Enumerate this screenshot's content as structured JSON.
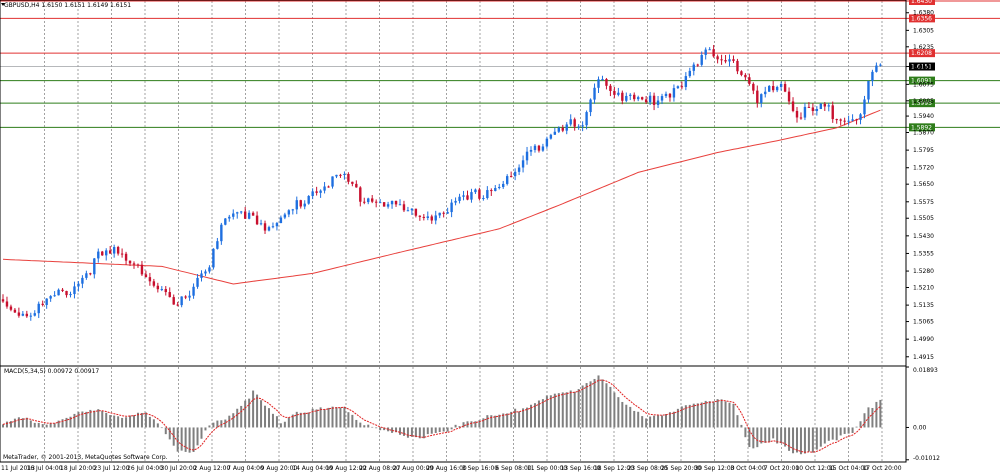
{
  "header": {
    "main_title": "GBPUSD,H4 1.6150 1.6151 1.6149 1.6151",
    "indicator_title": "MACD(5,34,5) 0.00972 0.00917",
    "copyright": "MetaTrader, © 2001-2013, MetaQuotes Software Corp."
  },
  "colors": {
    "bull_candle": "#1e6fe0",
    "bear_candle": "#c8102e",
    "moving_average": "#e8403c",
    "resistance": "#e03030",
    "support": "#2e7d1a",
    "macd_histogram": "#7f7f7f",
    "macd_signal": "#e02020",
    "grid": "#8c8c8c"
  },
  "chart_data": [
    {
      "type": "candlestick",
      "symbol": "GBPUSD",
      "timeframe": "H4",
      "ylim": [
        1.488,
        1.643
      ],
      "y_ticks": [
        "1.6380",
        "1.6305",
        "1.6235",
        "1.6151",
        "1.6075",
        "1.6005",
        "1.5940",
        "1.5870",
        "1.5795",
        "1.5720",
        "1.5650",
        "1.5575",
        "1.5505",
        "1.5430",
        "1.5355",
        "1.5280",
        "1.5210",
        "1.5135",
        "1.5065",
        "1.4990",
        "1.4915"
      ],
      "x_ticks": [
        "11 Jul 2013",
        "16 Jul 04:00",
        "18 Jul 20:00",
        "23 Jul 12:00",
        "26 Jul 04:00",
        "30 Jul 20:00",
        "2 Aug 12:00",
        "7 Aug 04:00",
        "9 Aug 20:00",
        "14 Aug 04:00",
        "19 Aug 12:00",
        "22 Aug 08:00",
        "27 Aug 00:00",
        "29 Aug 16:00",
        "3 Sep 16:00",
        "6 Sep 08:00",
        "11 Sep 00:00",
        "13 Sep 16:00",
        "18 Sep 12:00",
        "23 Sep 08:00",
        "25 Sep 20:00",
        "30 Sep 12:00",
        "3 Oct 04:00",
        "7 Oct 20:00",
        "10 Oct 12:00",
        "15 Oct 04:00",
        "17 Oct 20:00"
      ],
      "close_anchors": [
        {
          "x": 0,
          "close": 1.516
        },
        {
          "x": 6,
          "close": 1.511
        },
        {
          "x": 18,
          "close": 1.523
        },
        {
          "x": 24,
          "close": 1.535
        },
        {
          "x": 28,
          "close": 1.537
        },
        {
          "x": 34,
          "close": 1.5335
        },
        {
          "x": 38,
          "close": 1.5225
        },
        {
          "x": 44,
          "close": 1.5135
        },
        {
          "x": 48,
          "close": 1.5245
        },
        {
          "x": 52,
          "close": 1.533
        },
        {
          "x": 56,
          "close": 1.551
        },
        {
          "x": 62,
          "close": 1.5545
        },
        {
          "x": 68,
          "close": 1.547
        },
        {
          "x": 74,
          "close": 1.5575
        },
        {
          "x": 80,
          "close": 1.5665
        },
        {
          "x": 86,
          "close": 1.569
        },
        {
          "x": 90,
          "close": 1.5615
        },
        {
          "x": 98,
          "close": 1.558
        },
        {
          "x": 104,
          "close": 1.5525
        },
        {
          "x": 110,
          "close": 1.5545
        },
        {
          "x": 116,
          "close": 1.559
        },
        {
          "x": 122,
          "close": 1.564
        },
        {
          "x": 128,
          "close": 1.569
        },
        {
          "x": 134,
          "close": 1.582
        },
        {
          "x": 140,
          "close": 1.5925
        },
        {
          "x": 146,
          "close": 1.59
        },
        {
          "x": 150,
          "close": 1.613
        },
        {
          "x": 156,
          "close": 1.604
        },
        {
          "x": 162,
          "close": 1.601
        },
        {
          "x": 168,
          "close": 1.606
        },
        {
          "x": 174,
          "close": 1.615
        },
        {
          "x": 178,
          "close": 1.623
        },
        {
          "x": 184,
          "close": 1.62
        },
        {
          "x": 190,
          "close": 1.601
        },
        {
          "x": 196,
          "close": 1.61
        },
        {
          "x": 200,
          "close": 1.596
        },
        {
          "x": 206,
          "close": 1.598
        },
        {
          "x": 212,
          "close": 1.596
        },
        {
          "x": 216,
          "close": 1.595
        },
        {
          "x": 219,
          "close": 1.614
        },
        {
          "x": 221,
          "close": 1.6151
        }
      ],
      "moving_average": [
        {
          "x": 0,
          "value": 1.533
        },
        {
          "x": 40,
          "value": 1.53
        },
        {
          "x": 58,
          "value": 1.5225
        },
        {
          "x": 78,
          "value": 1.527
        },
        {
          "x": 100,
          "value": 1.536
        },
        {
          "x": 125,
          "value": 1.546
        },
        {
          "x": 140,
          "value": 1.556
        },
        {
          "x": 160,
          "value": 1.57
        },
        {
          "x": 180,
          "value": 1.5785
        },
        {
          "x": 195,
          "value": 1.5835
        },
        {
          "x": 210,
          "value": 1.589
        },
        {
          "x": 221,
          "value": 1.5965
        }
      ],
      "horizontal_lines": [
        {
          "price": 1.643,
          "label": "1.6430",
          "kind": "resistance"
        },
        {
          "price": 1.6356,
          "label": "1.6356",
          "kind": "resistance"
        },
        {
          "price": 1.6208,
          "label": "1.6208",
          "kind": "resistance"
        },
        {
          "price": 1.6091,
          "label": "1.6091",
          "kind": "support"
        },
        {
          "price": 1.5995,
          "label": "1.5995",
          "kind": "support"
        },
        {
          "price": 1.5892,
          "label": "1.5892",
          "kind": "support"
        }
      ],
      "current_price": "1.6151"
    },
    {
      "type": "histogram",
      "name": "MACD(5,34,5)",
      "ylim": [
        -0.0105,
        0.01893
      ],
      "y_ticks": [
        "0.01893",
        "0.00",
        "-0.01012"
      ],
      "macd_anchors": [
        {
          "x": 0,
          "value": 0.002
        },
        {
          "x": 4,
          "value": 0.0035
        },
        {
          "x": 10,
          "value": 0.001
        },
        {
          "x": 16,
          "value": 0.004
        },
        {
          "x": 24,
          "value": 0.0055
        },
        {
          "x": 30,
          "value": 0.004
        },
        {
          "x": 36,
          "value": 0.0045
        },
        {
          "x": 40,
          "value": 0.0005
        },
        {
          "x": 44,
          "value": -0.0065
        },
        {
          "x": 48,
          "value": -0.0075
        },
        {
          "x": 52,
          "value": 0.001
        },
        {
          "x": 58,
          "value": 0.005
        },
        {
          "x": 63,
          "value": 0.0115
        },
        {
          "x": 66,
          "value": 0.007
        },
        {
          "x": 70,
          "value": 0.002
        },
        {
          "x": 74,
          "value": 0.0055
        },
        {
          "x": 80,
          "value": 0.006
        },
        {
          "x": 86,
          "value": 0.007
        },
        {
          "x": 90,
          "value": 0.002
        },
        {
          "x": 96,
          "value": -0.001
        },
        {
          "x": 104,
          "value": -0.0025
        },
        {
          "x": 112,
          "value": -0.0015
        },
        {
          "x": 116,
          "value": 0.0025
        },
        {
          "x": 122,
          "value": 0.0035
        },
        {
          "x": 128,
          "value": 0.005
        },
        {
          "x": 136,
          "value": 0.0095
        },
        {
          "x": 144,
          "value": 0.012
        },
        {
          "x": 150,
          "value": 0.017
        },
        {
          "x": 156,
          "value": 0.008
        },
        {
          "x": 162,
          "value": 0.004
        },
        {
          "x": 168,
          "value": 0.0045
        },
        {
          "x": 174,
          "value": 0.008
        },
        {
          "x": 180,
          "value": 0.0095
        },
        {
          "x": 184,
          "value": 0.007
        },
        {
          "x": 188,
          "value": -0.006
        },
        {
          "x": 194,
          "value": -0.003
        },
        {
          "x": 198,
          "value": -0.0075
        },
        {
          "x": 202,
          "value": -0.0085
        },
        {
          "x": 208,
          "value": -0.0035
        },
        {
          "x": 214,
          "value": -0.0015
        },
        {
          "x": 218,
          "value": 0.006
        },
        {
          "x": 221,
          "value": 0.0097
        }
      ]
    }
  ]
}
